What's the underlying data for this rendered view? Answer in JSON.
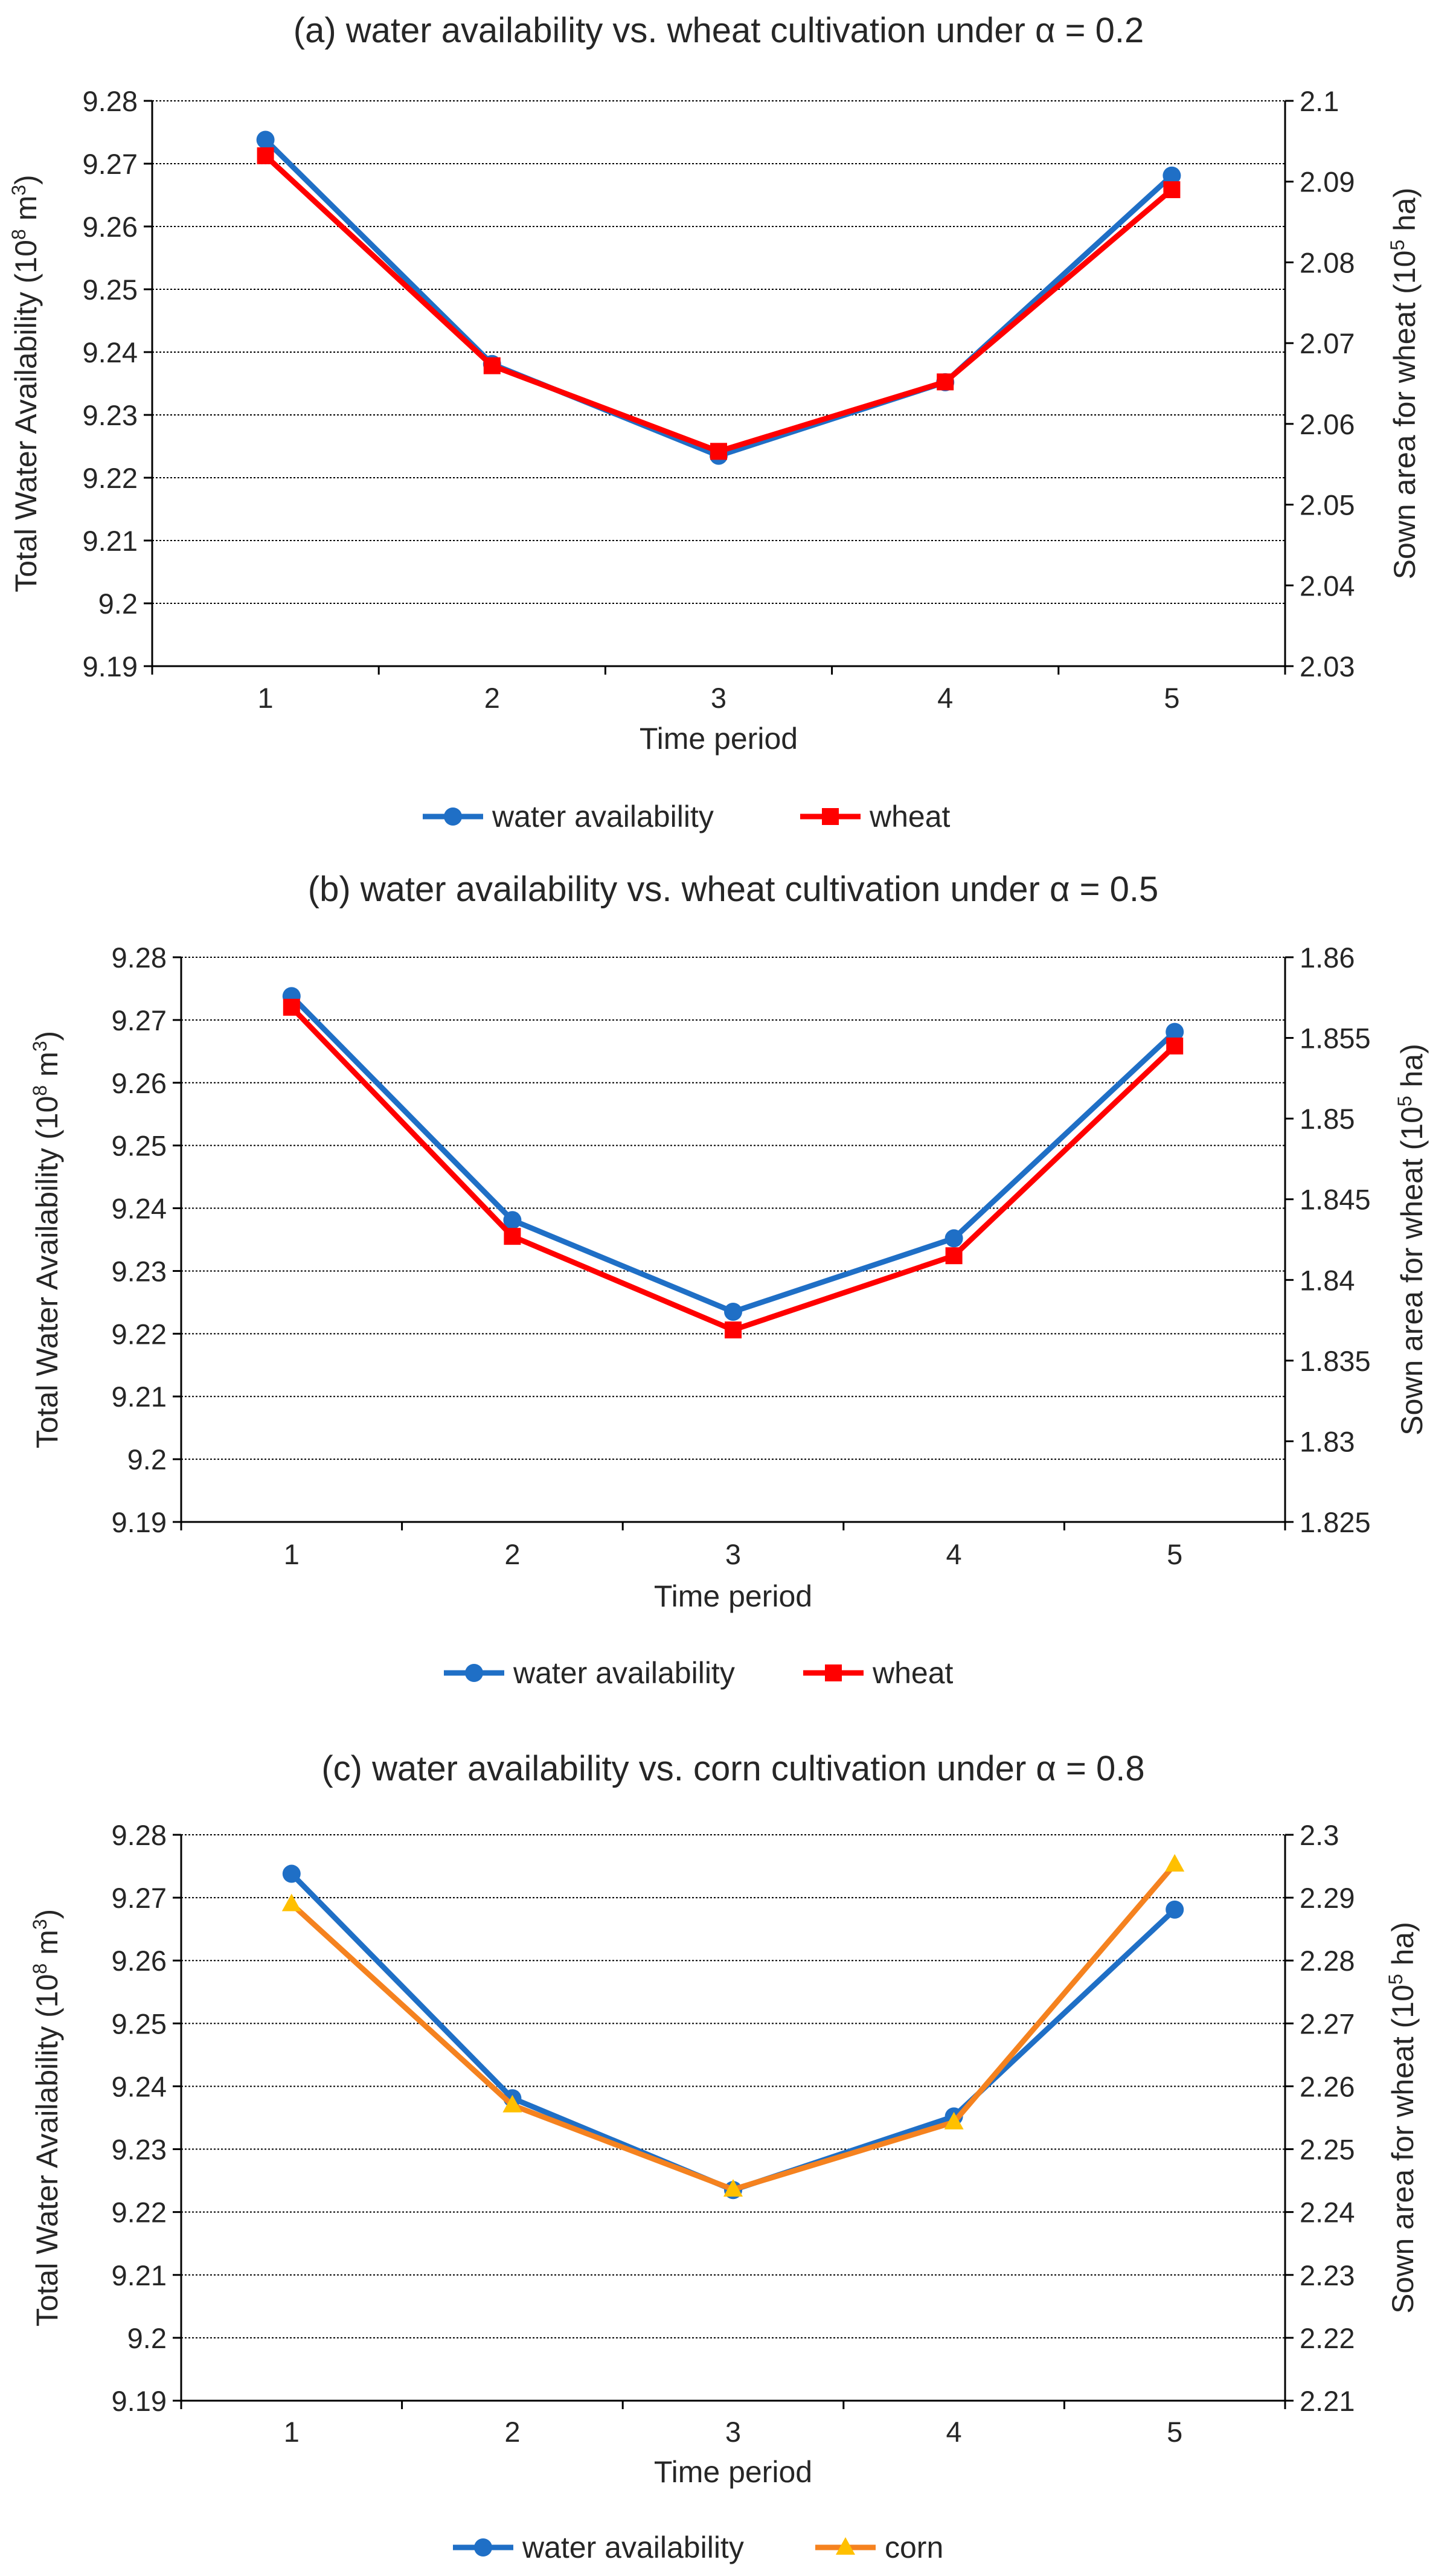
{
  "chart_data": [
    {
      "type": "line",
      "title": "(a) water availability vs. wheat cultivation under α = 0.2",
      "xlabel": "Time period",
      "ylabel": {
        "text": "Total Water Availability (10",
        "sup": "8",
        "suffix": " m",
        "sup2": "3",
        "end": ")"
      },
      "y2label": {
        "text": "Sown area for wheat (10",
        "sup": "5",
        "end": " ha)"
      },
      "categories": [
        "1",
        "2",
        "3",
        "4",
        "5"
      ],
      "ylim": [
        9.19,
        9.28
      ],
      "yticks": [
        "9.19",
        "9.2",
        "9.21",
        "9.22",
        "9.23",
        "9.24",
        "9.25",
        "9.26",
        "9.27",
        "9.28"
      ],
      "y2lim": [
        2.03,
        2.1
      ],
      "y2ticks": [
        "2.03",
        "2.04",
        "2.05",
        "2.06",
        "2.07",
        "2.08",
        "2.09",
        "2.1"
      ],
      "series": [
        {
          "name": "water availability",
          "axis": "left",
          "color": "#1F6FC6",
          "marker": "circle",
          "values": [
            9.2738,
            9.2381,
            9.2235,
            9.2352,
            9.2681
          ]
        },
        {
          "name": "wheat",
          "axis": "right",
          "color": "#FF0000",
          "marker": "square",
          "values": [
            2.0932,
            2.0672,
            2.0566,
            2.0652,
            2.089
          ]
        }
      ]
    },
    {
      "type": "line",
      "title": "(b) water availability vs. wheat cultivation under α = 0.5",
      "xlabel": "Time period",
      "ylabel": {
        "text": "Total Water Availability (10",
        "sup": "8",
        "suffix": " m",
        "sup2": "3",
        "end": ")"
      },
      "y2label": {
        "text": "Sown area for wheat (10",
        "sup": "5",
        "end": " ha)"
      },
      "categories": [
        "1",
        "2",
        "3",
        "4",
        "5"
      ],
      "ylim": [
        9.19,
        9.28
      ],
      "yticks": [
        "9.19",
        "9.2",
        "9.21",
        "9.22",
        "9.23",
        "9.24",
        "9.25",
        "9.26",
        "9.27",
        "9.28"
      ],
      "y2lim": [
        1.825,
        1.86
      ],
      "y2ticks": [
        "1.825",
        "1.83",
        "1.835",
        "1.84",
        "1.845",
        "1.85",
        "1.855",
        "1.86"
      ],
      "series": [
        {
          "name": "water availability",
          "axis": "left",
          "color": "#1F6FC6",
          "marker": "circle",
          "values": [
            9.2738,
            9.2381,
            9.2235,
            9.2352,
            9.2681
          ]
        },
        {
          "name": "wheat",
          "axis": "right",
          "color": "#FF0000",
          "marker": "square",
          "values": [
            1.8569,
            1.8427,
            1.8369,
            1.8415,
            1.8545
          ]
        }
      ]
    },
    {
      "type": "line",
      "title": "(c) water availability vs. corn cultivation under α = 0.8",
      "xlabel": "Time period",
      "ylabel": {
        "text": "Total Water Availability (10",
        "sup": "8",
        "suffix": " m",
        "sup2": "3",
        "end": ")"
      },
      "y2label": {
        "text": "Sown area for wheat (10",
        "sup": "5",
        "end": " ha)"
      },
      "categories": [
        "1",
        "2",
        "3",
        "4",
        "5"
      ],
      "ylim": [
        9.19,
        9.28
      ],
      "yticks": [
        "9.19",
        "9.2",
        "9.21",
        "9.22",
        "9.23",
        "9.24",
        "9.25",
        "9.26",
        "9.27",
        "9.28"
      ],
      "y2lim": [
        2.21,
        2.3
      ],
      "y2ticks": [
        "2.21",
        "2.22",
        "2.23",
        "2.24",
        "2.25",
        "2.26",
        "2.27",
        "2.28",
        "2.29",
        "2.3"
      ],
      "series": [
        {
          "name": "water availability",
          "axis": "left",
          "color": "#1F6FC6",
          "marker": "circle",
          "values": [
            9.2738,
            9.2381,
            9.2235,
            9.2352,
            9.2681
          ]
        },
        {
          "name": "corn",
          "axis": "right",
          "color": "#F5821F",
          "markerColor": "#FFC000",
          "marker": "triangle",
          "values": [
            2.289,
            2.257,
            2.2436,
            2.2543,
            2.2953
          ]
        }
      ]
    }
  ]
}
